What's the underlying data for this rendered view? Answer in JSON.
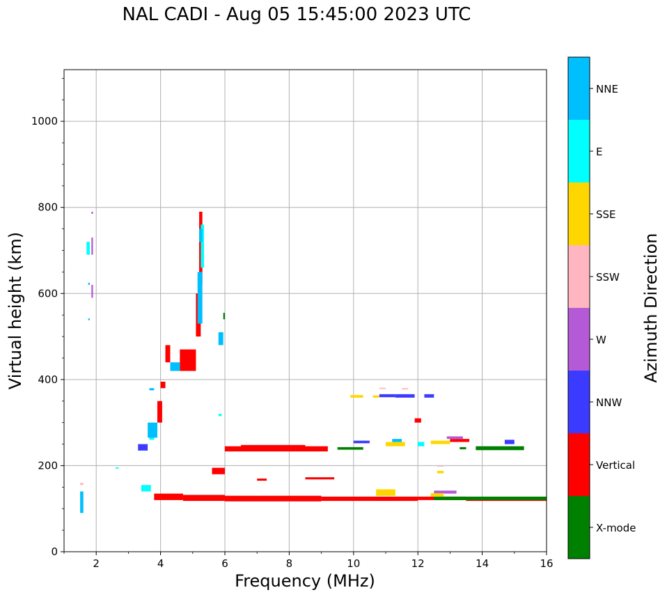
{
  "chart_data": {
    "type": "scatter",
    "title": "NAL CADI - Aug 05 15:45:00 2023 UTC",
    "xlabel": "Frequency (MHz)",
    "ylabel": "Virtual height (km)",
    "xlim": [
      1,
      16
    ],
    "ylim": [
      0,
      1120
    ],
    "xticks": [
      2,
      4,
      6,
      8,
      10,
      12,
      14,
      16
    ],
    "yticks": [
      0,
      200,
      400,
      600,
      800,
      1000
    ],
    "grid": true,
    "colorbar": {
      "label": "Azimuth Direction",
      "categories": [
        {
          "name": "X-mode",
          "color": "#008000"
        },
        {
          "name": "Vertical",
          "color": "#ff0000"
        },
        {
          "name": "NNW",
          "color": "#3b3bff"
        },
        {
          "name": "W",
          "color": "#b45ad6"
        },
        {
          "name": "SSW",
          "color": "#ffb6c1"
        },
        {
          "name": "SSE",
          "color": "#ffd700"
        },
        {
          "name": "E",
          "color": "#00ffff"
        },
        {
          "name": "NNE",
          "color": "#00bfff"
        }
      ]
    },
    "series": [
      {
        "name": "Vertical",
        "color": "#ff0000",
        "segments": [
          [
            3.8,
            4.7,
            120,
            135
          ],
          [
            4.7,
            6.0,
            118,
            132
          ],
          [
            6.0,
            9.0,
            117,
            130
          ],
          [
            9.0,
            12.0,
            118,
            128
          ],
          [
            12.0,
            13.5,
            120,
            128
          ],
          [
            13.5,
            16.0,
            118,
            126
          ],
          [
            6.0,
            9.2,
            233,
            245
          ],
          [
            6.5,
            8.5,
            240,
            248
          ],
          [
            3.9,
            4.05,
            300,
            350
          ],
          [
            4.0,
            4.15,
            380,
            395
          ],
          [
            4.15,
            4.3,
            440,
            480
          ],
          [
            4.6,
            5.1,
            420,
            470
          ],
          [
            5.1,
            5.25,
            500,
            600
          ],
          [
            5.2,
            5.3,
            620,
            790
          ],
          [
            5.6,
            6.0,
            180,
            195
          ],
          [
            13.0,
            13.6,
            255,
            262
          ],
          [
            11.9,
            12.1,
            300,
            310
          ],
          [
            7.0,
            7.3,
            165,
            170
          ],
          [
            8.5,
            9.4,
            168,
            173
          ]
        ]
      },
      {
        "name": "X-mode",
        "color": "#008000",
        "segments": [
          [
            12.5,
            16.0,
            120,
            128
          ],
          [
            13.8,
            15.3,
            236,
            245
          ],
          [
            9.5,
            10.3,
            237,
            243
          ],
          [
            13.3,
            13.5,
            238,
            243
          ],
          [
            5.95,
            6.0,
            540,
            555
          ]
        ]
      },
      {
        "name": "NNW",
        "color": "#3b3bff",
        "segments": [
          [
            10.8,
            11.3,
            359,
            366
          ],
          [
            11.3,
            11.9,
            358,
            366
          ],
          [
            12.2,
            12.5,
            358,
            366
          ],
          [
            10.0,
            10.5,
            252,
            258
          ],
          [
            14.7,
            15.0,
            250,
            260
          ],
          [
            3.3,
            3.6,
            235,
            250
          ]
        ]
      },
      {
        "name": "W",
        "color": "#b45ad6",
        "segments": [
          [
            12.9,
            13.4,
            262,
            268
          ],
          [
            1.85,
            1.9,
            590,
            620
          ],
          [
            1.85,
            1.9,
            690,
            730
          ],
          [
            1.85,
            1.9,
            785,
            790
          ],
          [
            12.5,
            13.2,
            135,
            142
          ]
        ]
      },
      {
        "name": "SSW",
        "color": "#ffb6c1",
        "segments": [
          [
            10.8,
            11.0,
            378,
            381
          ],
          [
            11.5,
            11.7,
            377,
            380
          ],
          [
            12.6,
            12.8,
            198,
            200
          ],
          [
            1.5,
            1.6,
            155,
            160
          ]
        ]
      },
      {
        "name": "SSE",
        "color": "#ffd700",
        "segments": [
          [
            9.9,
            10.3,
            358,
            364
          ],
          [
            10.6,
            10.8,
            358,
            363
          ],
          [
            12.4,
            13.0,
            250,
            258
          ],
          [
            11.0,
            11.6,
            245,
            255
          ],
          [
            10.7,
            11.3,
            130,
            145
          ],
          [
            12.4,
            12.8,
            128,
            136
          ],
          [
            12.6,
            12.8,
            182,
            188
          ]
        ]
      },
      {
        "name": "E",
        "color": "#00ffff",
        "segments": [
          [
            3.4,
            3.7,
            140,
            155
          ],
          [
            3.65,
            3.8,
            260,
            290
          ],
          [
            5.25,
            5.35,
            660,
            760
          ],
          [
            1.7,
            1.8,
            690,
            720
          ],
          [
            12.0,
            12.2,
            245,
            255
          ],
          [
            5.8,
            5.9,
            315,
            320
          ],
          [
            2.6,
            2.7,
            193,
            196
          ]
        ]
      },
      {
        "name": "NNE",
        "color": "#00bfff",
        "segments": [
          [
            3.6,
            3.9,
            265,
            300
          ],
          [
            4.3,
            4.6,
            420,
            440
          ],
          [
            5.15,
            5.3,
            530,
            650
          ],
          [
            5.2,
            5.3,
            720,
            750
          ],
          [
            3.65,
            3.8,
            375,
            380
          ],
          [
            1.5,
            1.6,
            90,
            140
          ],
          [
            1.75,
            1.8,
            620,
            625
          ],
          [
            1.75,
            1.8,
            538,
            542
          ],
          [
            5.8,
            5.95,
            480,
            510
          ],
          [
            11.2,
            11.5,
            255,
            262
          ]
        ]
      }
    ]
  }
}
